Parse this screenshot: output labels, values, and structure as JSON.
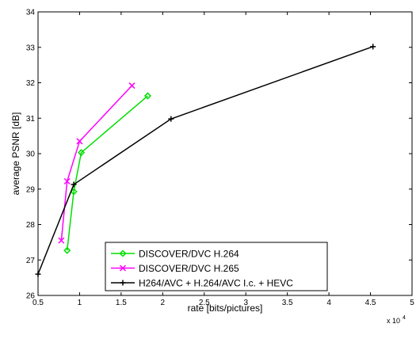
{
  "chart_data": {
    "type": "line",
    "title": "",
    "xlabel": "rate [bits/pictures]",
    "ylabel": "average PSNR [dB]",
    "x_multiplier_label": "x 10",
    "x_multiplier_exp": "4",
    "xlim": [
      0.5,
      5
    ],
    "ylim": [
      26,
      34
    ],
    "x_ticks": [
      0.5,
      1,
      1.5,
      2,
      2.5,
      3,
      3.5,
      4,
      4.5,
      5
    ],
    "x_tick_labels": [
      "0.5",
      "1",
      "1.5",
      "2",
      "2.5",
      "3",
      "3.5",
      "4",
      "4.5",
      "5"
    ],
    "y_ticks": [
      26,
      27,
      28,
      29,
      30,
      31,
      32,
      33,
      34
    ],
    "y_tick_labels": [
      "26",
      "27",
      "28",
      "29",
      "30",
      "31",
      "32",
      "33",
      "34"
    ],
    "grid": false,
    "legend_position": "bottom-center",
    "series": [
      {
        "name": "DISCOVER/DVC H.264",
        "color": "#00e000",
        "marker": "diamond",
        "x": [
          0.85,
          0.93,
          1.02,
          1.82
        ],
        "y": [
          27.27,
          28.93,
          30.03,
          31.63
        ]
      },
      {
        "name": "DISCOVER/DVC H.265",
        "color": "#ff00ff",
        "marker": "x",
        "x": [
          0.78,
          0.85,
          1.0,
          1.63
        ],
        "y": [
          27.55,
          29.22,
          30.35,
          31.92
        ]
      },
      {
        "name": "H264/AVC + H.264/AVC I.c. + HEVC",
        "color": "#000000",
        "marker": "plus",
        "x": [
          0.5,
          0.93,
          2.1,
          4.53
        ],
        "y": [
          26.6,
          29.13,
          30.98,
          33.02
        ]
      }
    ]
  }
}
